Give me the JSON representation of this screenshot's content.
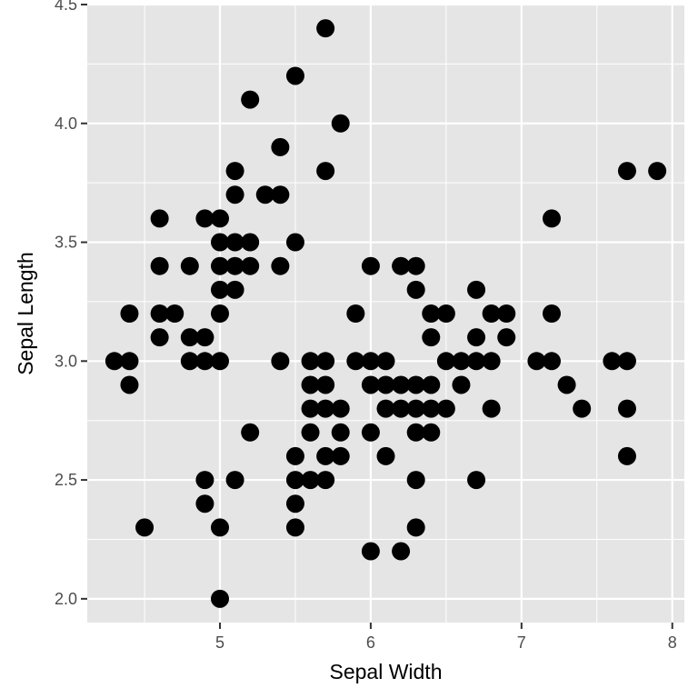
{
  "chart_data": {
    "type": "scatter",
    "title": "",
    "xlabel": "Sepal Width",
    "ylabel": "Sepal Length",
    "xlim": [
      4.12,
      8.08
    ],
    "ylim": [
      1.9,
      4.5
    ],
    "x_ticks": [
      5,
      6,
      7,
      8
    ],
    "x_tick_labels": [
      "5",
      "6",
      "7",
      "8"
    ],
    "y_ticks": [
      2.0,
      2.5,
      3.0,
      3.5,
      4.0,
      4.5
    ],
    "y_tick_labels": [
      "2.0",
      "2.5",
      "3.0",
      "3.5",
      "4.0",
      "4.5"
    ],
    "grid": true,
    "legend": "none",
    "colors": {
      "panel": "#e5e5e5",
      "grid": "#ffffff",
      "point": "#000000"
    },
    "points": [
      [
        5.7,
        4.4
      ],
      [
        5.5,
        4.2
      ],
      [
        5.2,
        4.1
      ],
      [
        5.8,
        4.0
      ],
      [
        5.4,
        3.9
      ],
      [
        5.1,
        3.8
      ],
      [
        5.7,
        3.8
      ],
      [
        7.7,
        3.8
      ],
      [
        7.9,
        3.8
      ],
      [
        5.1,
        3.7
      ],
      [
        5.3,
        3.7
      ],
      [
        5.4,
        3.7
      ],
      [
        4.6,
        3.6
      ],
      [
        4.9,
        3.6
      ],
      [
        5.0,
        3.6
      ],
      [
        7.2,
        3.6
      ],
      [
        5.0,
        3.5
      ],
      [
        5.1,
        3.5
      ],
      [
        5.2,
        3.5
      ],
      [
        5.5,
        3.5
      ],
      [
        4.6,
        3.4
      ],
      [
        4.8,
        3.4
      ],
      [
        5.0,
        3.4
      ],
      [
        5.1,
        3.4
      ],
      [
        5.2,
        3.4
      ],
      [
        5.4,
        3.4
      ],
      [
        6.0,
        3.4
      ],
      [
        6.2,
        3.4
      ],
      [
        6.3,
        3.4
      ],
      [
        5.0,
        3.3
      ],
      [
        5.1,
        3.3
      ],
      [
        6.3,
        3.3
      ],
      [
        6.7,
        3.3
      ],
      [
        4.4,
        3.2
      ],
      [
        4.6,
        3.2
      ],
      [
        4.7,
        3.2
      ],
      [
        5.0,
        3.2
      ],
      [
        5.9,
        3.2
      ],
      [
        6.4,
        3.2
      ],
      [
        6.5,
        3.2
      ],
      [
        6.8,
        3.2
      ],
      [
        6.9,
        3.2
      ],
      [
        7.2,
        3.2
      ],
      [
        4.6,
        3.1
      ],
      [
        4.8,
        3.1
      ],
      [
        4.9,
        3.1
      ],
      [
        6.4,
        3.1
      ],
      [
        6.7,
        3.1
      ],
      [
        6.9,
        3.1
      ],
      [
        4.3,
        3.0
      ],
      [
        4.4,
        3.0
      ],
      [
        4.8,
        3.0
      ],
      [
        4.9,
        3.0
      ],
      [
        5.0,
        3.0
      ],
      [
        5.4,
        3.0
      ],
      [
        5.6,
        3.0
      ],
      [
        5.7,
        3.0
      ],
      [
        5.9,
        3.0
      ],
      [
        6.0,
        3.0
      ],
      [
        6.1,
        3.0
      ],
      [
        6.5,
        3.0
      ],
      [
        6.6,
        3.0
      ],
      [
        6.7,
        3.0
      ],
      [
        6.8,
        3.0
      ],
      [
        7.1,
        3.0
      ],
      [
        7.2,
        3.0
      ],
      [
        7.6,
        3.0
      ],
      [
        7.7,
        3.0
      ],
      [
        4.4,
        2.9
      ],
      [
        5.6,
        2.9
      ],
      [
        5.7,
        2.9
      ],
      [
        6.0,
        2.9
      ],
      [
        6.1,
        2.9
      ],
      [
        6.2,
        2.9
      ],
      [
        6.3,
        2.9
      ],
      [
        6.4,
        2.9
      ],
      [
        6.6,
        2.9
      ],
      [
        7.3,
        2.9
      ],
      [
        5.6,
        2.8
      ],
      [
        5.7,
        2.8
      ],
      [
        5.8,
        2.8
      ],
      [
        6.1,
        2.8
      ],
      [
        6.2,
        2.8
      ],
      [
        6.3,
        2.8
      ],
      [
        6.4,
        2.8
      ],
      [
        6.5,
        2.8
      ],
      [
        6.8,
        2.8
      ],
      [
        7.4,
        2.8
      ],
      [
        7.7,
        2.8
      ],
      [
        5.2,
        2.7
      ],
      [
        5.6,
        2.7
      ],
      [
        5.8,
        2.7
      ],
      [
        6.0,
        2.7
      ],
      [
        6.3,
        2.7
      ],
      [
        6.4,
        2.7
      ],
      [
        5.5,
        2.6
      ],
      [
        5.7,
        2.6
      ],
      [
        5.8,
        2.6
      ],
      [
        6.1,
        2.6
      ],
      [
        7.7,
        2.6
      ],
      [
        4.9,
        2.5
      ],
      [
        5.1,
        2.5
      ],
      [
        5.5,
        2.5
      ],
      [
        5.6,
        2.5
      ],
      [
        5.7,
        2.5
      ],
      [
        6.3,
        2.5
      ],
      [
        6.7,
        2.5
      ],
      [
        4.9,
        2.4
      ],
      [
        5.5,
        2.4
      ],
      [
        4.5,
        2.3
      ],
      [
        5.0,
        2.3
      ],
      [
        5.5,
        2.3
      ],
      [
        6.3,
        2.3
      ],
      [
        6.0,
        2.2
      ],
      [
        6.2,
        2.2
      ],
      [
        5.0,
        2.0
      ]
    ]
  }
}
